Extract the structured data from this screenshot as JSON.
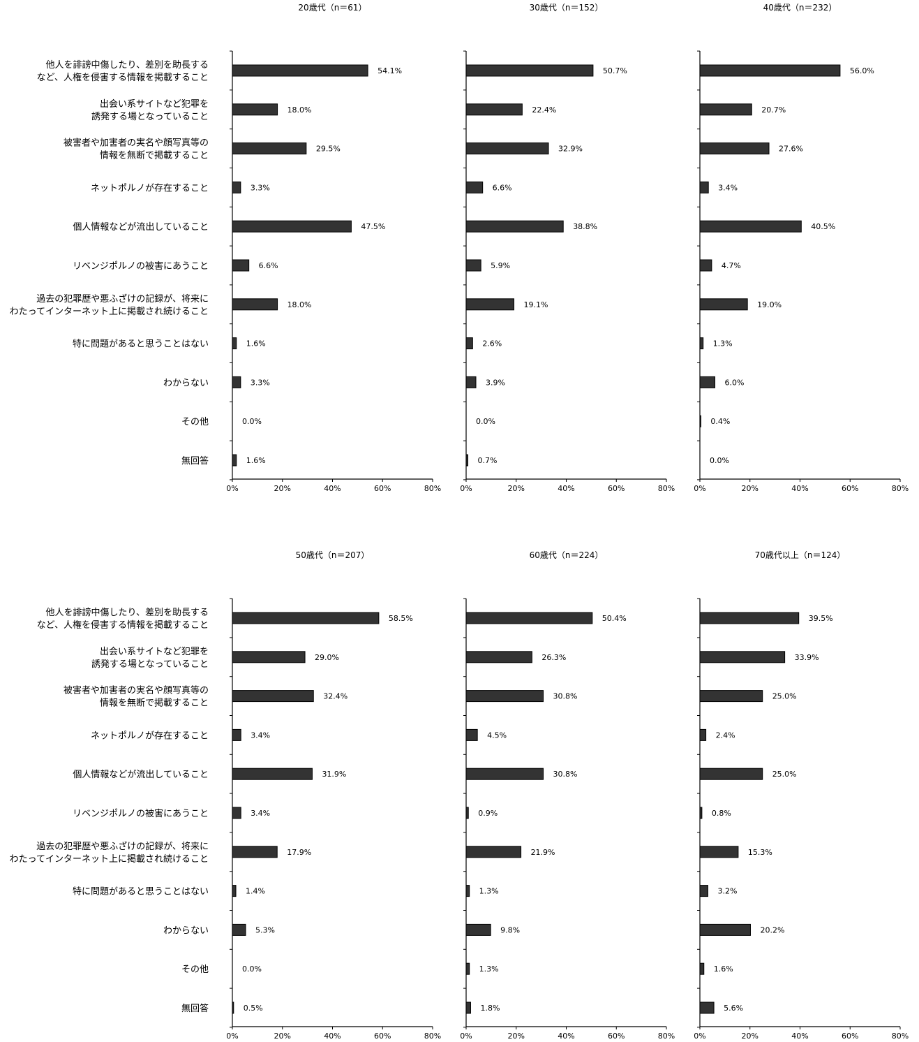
{
  "chart_data": {
    "type": "bar",
    "orientation": "horizontal",
    "categories": [
      [
        "他人を誹謗中傷したり、差別を助長する",
        "など、人権を侵害する情報を掲載すること"
      ],
      [
        "出会い系サイトなど犯罪を",
        "誘発する場となっていること"
      ],
      [
        "被害者や加害者の実名や顔写真等の",
        "情報を無断で掲載すること"
      ],
      [
        "ネットポルノが存在すること"
      ],
      [
        "個人情報などが流出していること"
      ],
      [
        "リベンジポルノの被害にあうこと"
      ],
      [
        "過去の犯罪歴や悪ふざけの記録が、将来に",
        "わたってインターネット上に掲載され続けること"
      ],
      [
        "特に問題があると思うことはない"
      ],
      [
        "わからない"
      ],
      [
        "その他"
      ],
      [
        "無回答"
      ]
    ],
    "xlim": [
      0,
      80
    ],
    "ticks": [
      "0%",
      "20%",
      "40%",
      "60%",
      "80%"
    ],
    "grid": false,
    "bar_color": "#333333",
    "panels": [
      {
        "title": "20歳代（n＝61）",
        "values": [
          54.1,
          18.0,
          29.5,
          3.3,
          47.5,
          6.6,
          18.0,
          1.6,
          3.3,
          0.0,
          1.6
        ]
      },
      {
        "title": "30歳代（n＝152）",
        "values": [
          50.7,
          22.4,
          32.9,
          6.6,
          38.8,
          5.9,
          19.1,
          2.6,
          3.9,
          0.0,
          0.7
        ]
      },
      {
        "title": "40歳代（n＝232）",
        "values": [
          56.0,
          20.7,
          27.6,
          3.4,
          40.5,
          4.7,
          19.0,
          1.3,
          6.0,
          0.4,
          0.0
        ]
      },
      {
        "title": "50歳代（n＝207）",
        "values": [
          58.5,
          29.0,
          32.4,
          3.4,
          31.9,
          3.4,
          17.9,
          1.4,
          5.3,
          0.0,
          0.5
        ]
      },
      {
        "title": "60歳代（n＝224）",
        "values": [
          50.4,
          26.3,
          30.8,
          4.5,
          30.8,
          0.9,
          21.9,
          1.3,
          9.8,
          1.3,
          1.8
        ]
      },
      {
        "title": "70歳代以上（n＝124）",
        "values": [
          39.5,
          33.9,
          25.0,
          2.4,
          25.0,
          0.8,
          15.3,
          3.2,
          20.2,
          1.6,
          5.6
        ]
      }
    ]
  }
}
